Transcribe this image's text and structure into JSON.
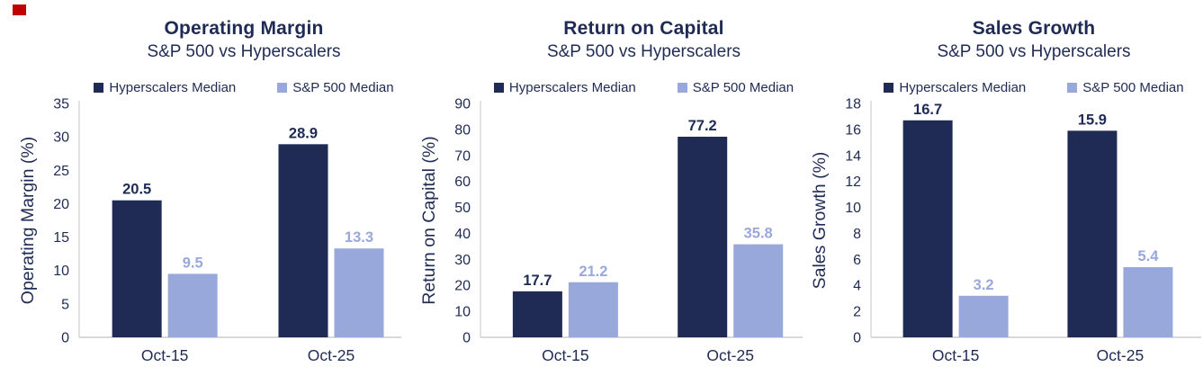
{
  "colors": {
    "navy": "#1f2b54",
    "periwinkle": "#99a8db",
    "axis_line": "#d9d9d9",
    "background": "#ffffff",
    "marker_red": "#c00000"
  },
  "chart_data": [
    {
      "type": "bar",
      "title": "Operating Margin",
      "subtitle": "S&P 500 vs Hyperscalers",
      "ylabel": "Operating Margin (%)",
      "xlabel": "",
      "categories": [
        "Oct-15",
        "Oct-25"
      ],
      "series": [
        {
          "name": "Hyperscalers Median",
          "values": [
            20.5,
            28.9
          ],
          "color": "#1f2b54"
        },
        {
          "name": "S&P 500 Median",
          "values": [
            9.5,
            13.3
          ],
          "color": "#99a8db"
        }
      ],
      "data_labels": [
        [
          "20.5",
          "28.9"
        ],
        [
          "9.5",
          "13.3"
        ]
      ],
      "ylim": [
        0,
        35
      ],
      "ytick_step": 5,
      "yticks": [
        0,
        5,
        10,
        15,
        20,
        25,
        30,
        35
      ],
      "grid": false,
      "legend_position": "top"
    },
    {
      "type": "bar",
      "title": "Return on Capital",
      "subtitle": "S&P 500 vs Hyperscalers",
      "ylabel": "Return on Capital (%)",
      "xlabel": "",
      "categories": [
        "Oct-15",
        "Oct-25"
      ],
      "series": [
        {
          "name": "Hyperscalers Median",
          "values": [
            17.7,
            77.2
          ],
          "color": "#1f2b54"
        },
        {
          "name": "S&P 500 Median",
          "values": [
            21.2,
            35.8
          ],
          "color": "#99a8db"
        }
      ],
      "data_labels": [
        [
          "17.7",
          "77.2"
        ],
        [
          "21.2",
          "35.8"
        ]
      ],
      "ylim": [
        0,
        90
      ],
      "ytick_step": 10,
      "yticks": [
        0,
        10,
        20,
        30,
        40,
        50,
        60,
        70,
        80,
        90
      ],
      "grid": false,
      "legend_position": "top"
    },
    {
      "type": "bar",
      "title": "Sales Growth",
      "subtitle": "S&P 500 vs Hyperscalers",
      "ylabel": "Sales Growth (%)",
      "xlabel": "",
      "categories": [
        "Oct-15",
        "Oct-25"
      ],
      "series": [
        {
          "name": "Hyperscalers Median",
          "values": [
            16.7,
            15.9
          ],
          "color": "#1f2b54"
        },
        {
          "name": "S&P 500 Median",
          "values": [
            3.2,
            5.4
          ],
          "color": "#99a8db"
        }
      ],
      "data_labels": [
        [
          "16.7",
          "15.9"
        ],
        [
          "3.2",
          "5.4"
        ]
      ],
      "ylim": [
        0,
        18
      ],
      "ytick_step": 2,
      "yticks": [
        0,
        2,
        4,
        6,
        8,
        10,
        12,
        14,
        16,
        18
      ],
      "grid": false,
      "legend_position": "top"
    }
  ]
}
